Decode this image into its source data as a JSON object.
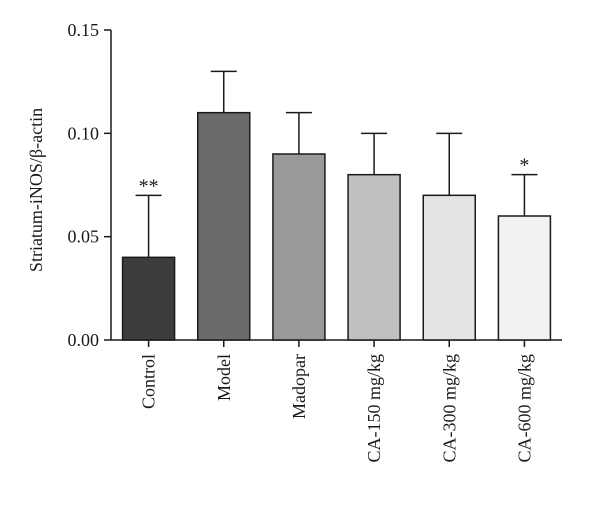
{
  "chart_data": {
    "type": "bar",
    "title": "",
    "xlabel": "",
    "ylabel": "Striatum-iNOS/β-actin",
    "categories": [
      "Control",
      "Model",
      "Madopar",
      "CA-150 mg/kg",
      "CA-300 mg/kg",
      "CA-600 mg/kg"
    ],
    "values": [
      0.04,
      0.11,
      0.09,
      0.08,
      0.07,
      0.06
    ],
    "error_upper": [
      0.03,
      0.02,
      0.02,
      0.02,
      0.03,
      0.02
    ],
    "significance": [
      "**",
      "",
      "",
      "",
      "",
      "*"
    ],
    "colors": [
      "#3d3d3d",
      "#6b6b6b",
      "#999999",
      "#c0c0c0",
      "#e3e3e3",
      "#f2f2f2"
    ],
    "ylim": [
      0,
      0.15
    ],
    "yticks": [
      "0.00",
      "0.05",
      "0.10",
      "0.15"
    ],
    "ytick_values": [
      0,
      0.05,
      0.1,
      0.15
    ],
    "grid": false,
    "legend": "none"
  }
}
